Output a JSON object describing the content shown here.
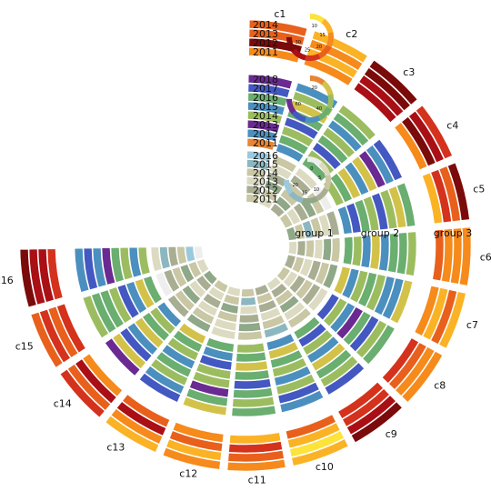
{
  "chart_data": {
    "type": "heatmap",
    "layout": "circular-heatmap",
    "groups": [
      {
        "name": "group 3",
        "palette": [
          "#fde33a",
          "#fbb224",
          "#f68a1b",
          "#e8601c",
          "#d4321c",
          "#a90f15",
          "#7b0a0a"
        ],
        "rows": [
          "2014",
          "2013",
          "2012",
          "2011"
        ],
        "columns": [
          "c1",
          "c2",
          "c3",
          "c4",
          "c5",
          "c6",
          "c7",
          "c8",
          "c9",
          "c10",
          "c11",
          "c12",
          "c13",
          "c14",
          "c15",
          "c16"
        ],
        "legend_ticks": [
          "10",
          "15",
          "20",
          "25",
          "30"
        ],
        "values": [
          [
            3,
            1,
            6,
            4,
            6,
            2,
            1,
            2,
            6,
            1,
            2,
            2,
            1,
            4,
            3,
            6
          ],
          [
            3,
            2,
            6,
            5,
            3,
            2,
            3,
            2,
            5,
            0,
            3,
            1,
            2,
            3,
            4,
            5
          ],
          [
            6,
            1,
            5,
            6,
            4,
            2,
            1,
            3,
            4,
            1,
            4,
            3,
            5,
            5,
            3,
            5
          ],
          [
            2,
            2,
            5,
            2,
            1,
            3,
            2,
            4,
            4,
            3,
            1,
            2,
            3,
            2,
            4,
            4
          ]
        ]
      },
      {
        "name": "group 2",
        "palette": [
          "#e88432",
          "#d3c24a",
          "#9cbd5f",
          "#6aae70",
          "#4b8fbf",
          "#4458c2",
          "#6a2a92"
        ],
        "rows": [
          "2018",
          "2017",
          "2016",
          "2015",
          "2014",
          "2013",
          "2012",
          "2011"
        ],
        "columns": [
          "c1",
          "c2",
          "c3",
          "c4",
          "c5",
          "c6",
          "c7",
          "c8",
          "c9",
          "c10",
          "c11",
          "c12",
          "c13",
          "c14",
          "c15",
          "c16"
        ],
        "legend_ticks": [
          "20",
          "40",
          "60"
        ],
        "values": [
          [
            6,
            4,
            2,
            5,
            3,
            2,
            1,
            3,
            5,
            4,
            3,
            1,
            5,
            6,
            2,
            4
          ],
          [
            5,
            2,
            3,
            4,
            1,
            3,
            4,
            2,
            2,
            5,
            2,
            3,
            4,
            1,
            3,
            5
          ],
          [
            3,
            1,
            4,
            6,
            2,
            3,
            4,
            5,
            3,
            2,
            3,
            6,
            2,
            5,
            3,
            4
          ],
          [
            4,
            3,
            2,
            1,
            5,
            4,
            2,
            3,
            1,
            4,
            5,
            2,
            3,
            4,
            2,
            6
          ],
          [
            2,
            5,
            3,
            4,
            2,
            1,
            3,
            6,
            4,
            2,
            3,
            2,
            4,
            1,
            5,
            3
          ],
          [
            6,
            2,
            5,
            1,
            3,
            4,
            2,
            4,
            2,
            3,
            1,
            5,
            2,
            3,
            4,
            2
          ],
          [
            4,
            3,
            2,
            3,
            5,
            2,
            4,
            2,
            5,
            1,
            3,
            4,
            3,
            2,
            1,
            4
          ],
          [
            0,
            4,
            3,
            2,
            4,
            3,
            1,
            5,
            3,
            4,
            2,
            3,
            1,
            4,
            3,
            2
          ]
        ]
      },
      {
        "name": "group 1",
        "palette": [
          "#eeeeee",
          "#dcdbc2",
          "#c9c7a4",
          "#a9ae93",
          "#8fa888",
          "#8cb7c0",
          "#9ac9dc"
        ],
        "rows": [
          "2016",
          "2015",
          "2014",
          "2013",
          "2012",
          "2011"
        ],
        "columns": [
          "c1",
          "c2",
          "c3",
          "c4",
          "c5",
          "c6",
          "c7",
          "c8",
          "c9",
          "c10",
          "c11",
          "c12",
          "c13",
          "c14",
          "c15",
          "c16"
        ],
        "legend_ticks": [
          "0",
          "5",
          "10",
          "15",
          "20"
        ],
        "values": [
          [
            6,
            2,
            1,
            0,
            3,
            2,
            4,
            1,
            2,
            5,
            2,
            1,
            4,
            3,
            0,
            1
          ],
          [
            5,
            1,
            3,
            2,
            1,
            4,
            2,
            3,
            1,
            2,
            4,
            1,
            2,
            2,
            3,
            5
          ],
          [
            2,
            3,
            2,
            4,
            2,
            1,
            3,
            2,
            4,
            1,
            3,
            2,
            1,
            4,
            2,
            3
          ],
          [
            1,
            4,
            2,
            3,
            5,
            2,
            1,
            3,
            2,
            3,
            1,
            4,
            3,
            1,
            4,
            2
          ],
          [
            3,
            2,
            4,
            1,
            2,
            3,
            2,
            1,
            3,
            2,
            5,
            2,
            1,
            3,
            2,
            6
          ],
          [
            2,
            1,
            3,
            2,
            4,
            1,
            3,
            2,
            1,
            3,
            2,
            1,
            2,
            4,
            1,
            0
          ]
        ]
      }
    ]
  }
}
